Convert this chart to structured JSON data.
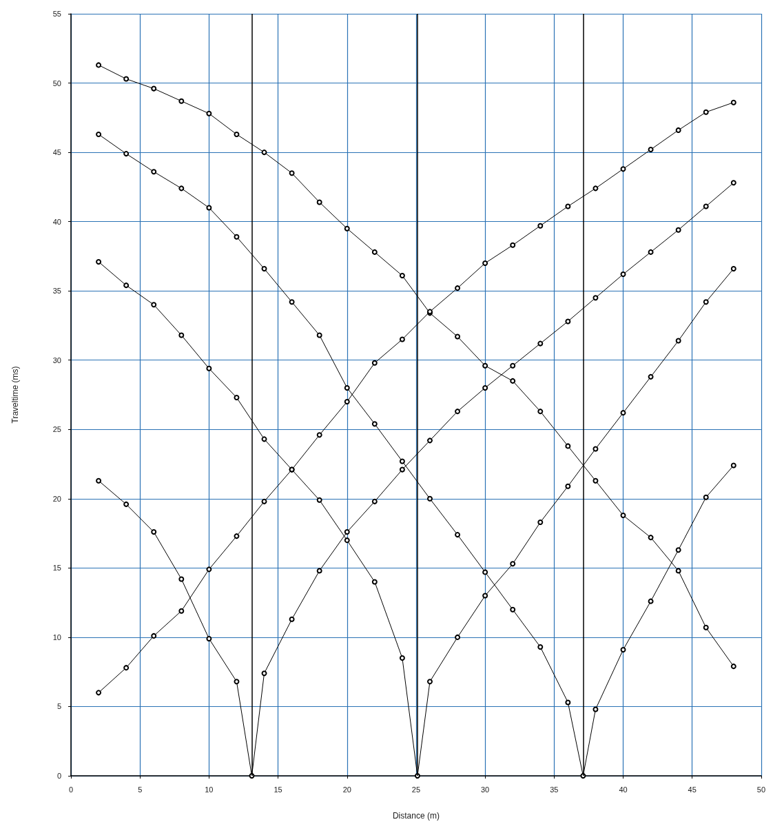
{
  "chart_data": {
    "type": "line",
    "xlabel": "Distance (m)",
    "ylabel": "Traveltime (ms)",
    "xlim": [
      0,
      50
    ],
    "xticks": [
      0,
      5,
      10,
      15,
      20,
      25,
      30,
      35,
      40,
      45,
      50
    ],
    "ylim": [
      0,
      55
    ],
    "yticks": [
      0,
      5,
      10,
      15,
      20,
      25,
      30,
      35,
      40,
      45,
      50,
      55
    ],
    "grid": true,
    "marker": "circle",
    "line_style": "solid",
    "ref_lines": [
      {
        "axis": "x",
        "value": 13.1,
        "color": "#000000"
      },
      {
        "axis": "x",
        "value": 25.1,
        "color": "#000000"
      },
      {
        "axis": "x",
        "value": 37.1,
        "color": "#000000"
      }
    ],
    "series": [
      {
        "color": "#000000",
        "x": [
          2,
          4,
          6,
          8,
          10,
          12,
          14,
          16,
          18,
          20,
          22,
          24,
          26,
          28,
          30,
          32,
          34,
          36,
          38,
          40,
          42,
          44,
          46,
          48
        ],
        "values": [
          51.3,
          50.3,
          49.6,
          48.7,
          47.8,
          46.3,
          45.0,
          43.5,
          41.4,
          39.5,
          37.8,
          36.1,
          33.4,
          31.7,
          29.6,
          28.5,
          26.3,
          23.8,
          21.3,
          18.8,
          17.2,
          14.8,
          10.7,
          7.9
        ]
      },
      {
        "color": "#000000",
        "x": [
          2,
          4,
          6,
          8,
          10,
          12,
          14,
          16,
          18,
          20,
          22,
          24,
          26,
          28,
          30,
          32,
          34,
          36,
          37.1,
          38,
          40,
          42,
          44,
          46,
          48
        ],
        "values": [
          46.3,
          44.9,
          43.6,
          42.4,
          41.0,
          38.9,
          36.6,
          34.2,
          31.8,
          28.0,
          25.4,
          22.7,
          20.0,
          17.4,
          14.7,
          12.0,
          9.3,
          5.3,
          0,
          4.8,
          9.1,
          12.6,
          16.3,
          20.1,
          22.4
        ]
      },
      {
        "color": "#000000",
        "x": [
          2,
          4,
          6,
          8,
          10,
          12,
          14,
          16,
          18,
          20,
          22,
          24,
          25.1,
          26,
          28,
          30,
          32,
          34,
          36,
          38,
          40,
          42,
          44,
          46,
          48
        ],
        "values": [
          37.1,
          35.4,
          34.0,
          31.8,
          29.4,
          27.3,
          24.3,
          22.1,
          19.9,
          17.0,
          14.0,
          8.5,
          0,
          6.8,
          10.0,
          13.0,
          15.3,
          18.3,
          20.9,
          23.6,
          26.2,
          28.8,
          31.4,
          34.2,
          36.6
        ]
      },
      {
        "color": "#000000",
        "x": [
          2,
          4,
          6,
          8,
          10,
          12,
          13.1,
          14,
          16,
          18,
          20,
          22,
          24,
          26,
          28,
          30,
          32,
          34,
          36,
          38,
          40,
          42,
          44,
          46,
          48
        ],
        "values": [
          21.3,
          19.6,
          17.6,
          14.2,
          9.9,
          6.8,
          0,
          7.4,
          11.3,
          14.8,
          17.6,
          19.8,
          22.1,
          24.2,
          26.3,
          28.0,
          29.6,
          31.2,
          32.8,
          34.5,
          36.2,
          37.8,
          39.4,
          41.1,
          42.8
        ]
      },
      {
        "color": "#000000",
        "x": [
          2,
          4,
          6,
          8,
          10,
          12,
          14,
          16,
          18,
          20,
          22,
          24,
          26,
          28,
          30,
          32,
          34,
          36,
          38,
          40,
          42,
          44,
          46,
          48
        ],
        "values": [
          6.0,
          7.8,
          10.1,
          11.9,
          14.9,
          17.3,
          19.8,
          22.1,
          24.6,
          27.0,
          29.8,
          31.5,
          33.5,
          35.2,
          37.0,
          38.3,
          39.7,
          41.1,
          42.4,
          43.8,
          45.2,
          46.6,
          47.9,
          48.6
        ]
      }
    ]
  }
}
